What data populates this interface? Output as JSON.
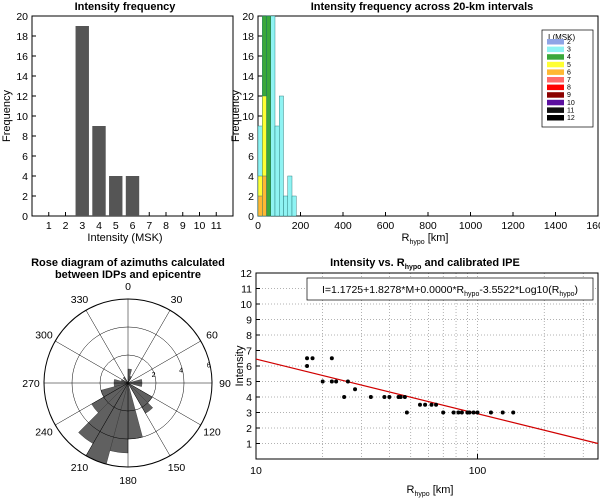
{
  "chart_data": [
    {
      "id": "hist",
      "type": "bar",
      "title": "Intensity frequency",
      "xlabel": "Intensity (MSK)",
      "ylabel": "Frequency",
      "categories": [
        "1",
        "2",
        "3",
        "4",
        "5",
        "6",
        "7",
        "8",
        "9",
        "10",
        "11"
      ],
      "values": [
        0,
        0,
        19,
        9,
        4,
        4,
        0,
        0,
        0,
        0,
        0
      ],
      "ylim": [
        0,
        20
      ],
      "yticks": [
        0,
        2,
        4,
        6,
        8,
        10,
        12,
        14,
        16,
        18,
        20
      ],
      "color": "#555555"
    },
    {
      "id": "dist",
      "type": "bar",
      "title": "Intensity frequency across 20-km intervals",
      "xlabel_main": "R",
      "xlabel_sub": "hypo",
      "xlabel_unit": " [km]",
      "ylabel": "Frequency",
      "xlim": [
        0,
        1600
      ],
      "xticks": [
        0,
        200,
        400,
        600,
        800,
        1000,
        1200,
        1400,
        1600
      ],
      "ylim": [
        0,
        20
      ],
      "yticks": [
        0,
        2,
        4,
        6,
        8,
        10,
        12,
        14,
        16,
        18,
        20
      ],
      "legend_title": "I (MSK)",
      "legend_position": "top-right",
      "series": [
        {
          "name": "2",
          "color": "#8fa5e6",
          "values": []
        },
        {
          "name": "3",
          "color": "#8ff3f3",
          "values": [
            {
              "x": [
                0,
                20
              ],
              "y": 9
            },
            {
              "x": [
                20,
                40
              ],
              "y": 12
            },
            {
              "x": [
                40,
                60
              ],
              "y": 20
            },
            {
              "x": [
                60,
                80
              ],
              "y": 20
            },
            {
              "x": [
                80,
                100
              ],
              "y": 9
            },
            {
              "x": [
                100,
                120
              ],
              "y": 12
            },
            {
              "x": [
                120,
                140
              ],
              "y": 2
            },
            {
              "x": [
                140,
                160
              ],
              "y": 4
            },
            {
              "x": [
                160,
                180
              ],
              "y": 2
            }
          ]
        },
        {
          "name": "4",
          "color": "#3aa83a",
          "values": [
            {
              "x": [
                20,
                40
              ],
              "y": 20
            },
            {
              "x": [
                40,
                60
              ],
              "y": 20
            }
          ]
        },
        {
          "name": "5",
          "color": "#ffff33",
          "values": [
            {
              "x": [
                0,
                20
              ],
              "y": 4
            },
            {
              "x": [
                20,
                40
              ],
              "y": 12
            }
          ]
        },
        {
          "name": "6",
          "color": "#ffb833",
          "values": [
            {
              "x": [
                0,
                20
              ],
              "y": 2
            },
            {
              "x": [
                20,
                40
              ],
              "y": 4
            }
          ]
        },
        {
          "name": "7",
          "color": "#ff6a6a",
          "values": []
        },
        {
          "name": "8",
          "color": "#ff0000",
          "values": []
        },
        {
          "name": "9",
          "color": "#8b0000",
          "values": []
        },
        {
          "name": "10",
          "color": "#5b0f9f",
          "values": []
        },
        {
          "name": "11",
          "color": "#111111",
          "values": []
        },
        {
          "name": "12",
          "color": "#000000",
          "values": []
        }
      ]
    },
    {
      "id": "rose",
      "type": "rose",
      "title": "Rose diagram of azimuths calculated",
      "title2": "between  IDPs and epicentre",
      "angle_labels": [
        {
          "deg": 0,
          "t": "0"
        },
        {
          "deg": 30,
          "t": "30"
        },
        {
          "deg": 60,
          "t": "60"
        },
        {
          "deg": 90,
          "t": "90"
        },
        {
          "deg": 120,
          "t": "120"
        },
        {
          "deg": 150,
          "t": "150"
        },
        {
          "deg": 180,
          "t": "180"
        },
        {
          "deg": 210,
          "t": "210"
        },
        {
          "deg": 240,
          "t": "240"
        },
        {
          "deg": 270,
          "t": "270"
        },
        {
          "deg": 300,
          "t": "300"
        },
        {
          "deg": 330,
          "t": "330"
        }
      ],
      "rmax": 6,
      "ring_values": [
        2,
        4,
        6
      ],
      "ring_labels": [
        "2",
        "4",
        "6"
      ],
      "bin_width_deg": 15,
      "petals": [
        {
          "from": 0,
          "to": 15,
          "r": 1
        },
        {
          "from": 15,
          "to": 30,
          "r": 0.5
        },
        {
          "from": 75,
          "to": 90,
          "r": 1
        },
        {
          "from": 90,
          "to": 105,
          "r": 1
        },
        {
          "from": 120,
          "to": 135,
          "r": 2
        },
        {
          "from": 135,
          "to": 150,
          "r": 2.5
        },
        {
          "from": 165,
          "to": 180,
          "r": 4
        },
        {
          "from": 180,
          "to": 195,
          "r": 5
        },
        {
          "from": 195,
          "to": 210,
          "r": 6
        },
        {
          "from": 210,
          "to": 225,
          "r": 5
        },
        {
          "from": 225,
          "to": 240,
          "r": 3
        },
        {
          "from": 240,
          "to": 255,
          "r": 2
        },
        {
          "from": 255,
          "to": 270,
          "r": 1
        },
        {
          "from": 270,
          "to": 285,
          "r": 1
        },
        {
          "from": 285,
          "to": 300,
          "r": 0.5
        },
        {
          "from": 315,
          "to": 330,
          "r": 0.5
        }
      ],
      "color": "#606060"
    },
    {
      "id": "ipe",
      "type": "scatter",
      "title_main": "Intensity vs. R",
      "title_sub": "hypo",
      "title_end": " and calibrated IPE",
      "xlabel_main": "R",
      "xlabel_sub": "hypo",
      "xlabel_unit": " [km]",
      "ylabel": "Intensity",
      "xscale": "log",
      "xlim": [
        10,
        350
      ],
      "xticks": [
        10,
        100
      ],
      "xtick_labels": [
        "10",
        "100"
      ],
      "ylim": [
        0,
        12
      ],
      "yticks": [
        1,
        2,
        3,
        4,
        5,
        6,
        7,
        8,
        9,
        10,
        11,
        12
      ],
      "grid": true,
      "equation_main": "I=1.1725+1.8278*M+0.0000*R",
      "equation_sub1": "hypo",
      "equation_mid": "-3.5522*Log10(R",
      "equation_sub2": "hypo",
      "equation_end": ")",
      "line": {
        "x": [
          10,
          350
        ],
        "y": [
          6.45,
          1.0
        ],
        "color": "#d00000"
      },
      "points": [
        [
          17,
          6.5
        ],
        [
          18,
          6.5
        ],
        [
          22,
          6.5
        ],
        [
          17,
          6
        ],
        [
          20,
          5
        ],
        [
          23,
          5
        ],
        [
          26,
          5
        ],
        [
          22,
          5
        ],
        [
          28,
          4.5
        ],
        [
          25,
          4
        ],
        [
          33,
          4
        ],
        [
          38,
          4
        ],
        [
          40,
          4
        ],
        [
          44,
          4
        ],
        [
          45,
          4
        ],
        [
          47,
          4
        ],
        [
          48,
          3
        ],
        [
          55,
          3.5
        ],
        [
          58,
          3.5
        ],
        [
          62,
          3.5
        ],
        [
          65,
          3.5
        ],
        [
          70,
          3
        ],
        [
          78,
          3
        ],
        [
          82,
          3
        ],
        [
          85,
          3
        ],
        [
          90,
          3
        ],
        [
          92,
          3
        ],
        [
          96,
          3
        ],
        [
          100,
          3
        ],
        [
          115,
          3
        ],
        [
          130,
          3
        ],
        [
          145,
          3
        ]
      ],
      "point_color": "#000000"
    }
  ]
}
